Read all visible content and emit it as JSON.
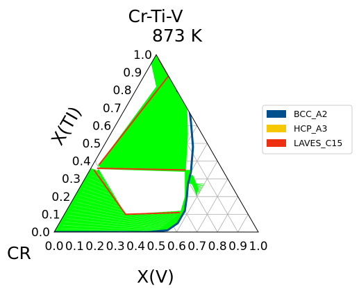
{
  "chart_data": {
    "type": "ternary-phase-diagram",
    "title": "Cr-Ti-V",
    "subtitle": "873  K",
    "corner_label": "CR",
    "xlabel": "X(V)",
    "ylabel": "X(TI)",
    "x_ticks": [
      "0.0",
      "0.1",
      "0.2",
      "0.3",
      "0.4",
      "0.5",
      "0.6",
      "0.7",
      "0.8",
      "0.9",
      "1.0"
    ],
    "y_ticks": [
      "0.0",
      "0.1",
      "0.2",
      "0.3",
      "0.4",
      "0.5",
      "0.6",
      "0.7",
      "0.8",
      "0.9",
      "1.0"
    ],
    "grid": true,
    "legend_position": "right",
    "legend": [
      {
        "name": "BCC_A2",
        "color": "#00508f"
      },
      {
        "name": "HCP_A3",
        "color": "#f5c800"
      },
      {
        "name": "LAVES_C15",
        "color": "#ee3010"
      }
    ],
    "colors": {
      "two_phase_tielines": "#00ff00",
      "phase_boundary": "#00508f",
      "laves_boundary": "#ee3010"
    },
    "regions": {
      "bcc_boundary": [
        [
          0.0,
          0.0
        ],
        [
          0.46,
          0.0
        ],
        [
          0.55,
          0.01
        ],
        [
          0.58,
          0.05
        ],
        [
          0.58,
          0.12
        ],
        [
          0.55,
          0.2
        ],
        [
          0.52,
          0.27
        ],
        [
          0.5,
          0.34
        ],
        [
          0.44,
          0.48
        ],
        [
          0.36,
          0.62
        ],
        [
          0.3,
          0.72
        ],
        [
          0.2,
          0.8
        ]
      ],
      "bcc_two_phase_top": [
        [
          0.2,
          0.8
        ],
        [
          0.34,
          0.66
        ]
      ],
      "laves_left_strip": [
        [
          0.02,
          0.38
        ],
        [
          0.15,
          0.95
        ]
      ],
      "laves_lower_tie": [
        [
          0.02,
          0.35
        ],
        [
          0.3,
          0.1
        ]
      ],
      "laves_upper_tie": [
        [
          0.04,
          0.36
        ],
        [
          0.48,
          0.35
        ]
      ],
      "right_lens": [
        [
          0.48,
          0.32
        ],
        [
          0.58,
          0.28
        ]
      ]
    }
  }
}
